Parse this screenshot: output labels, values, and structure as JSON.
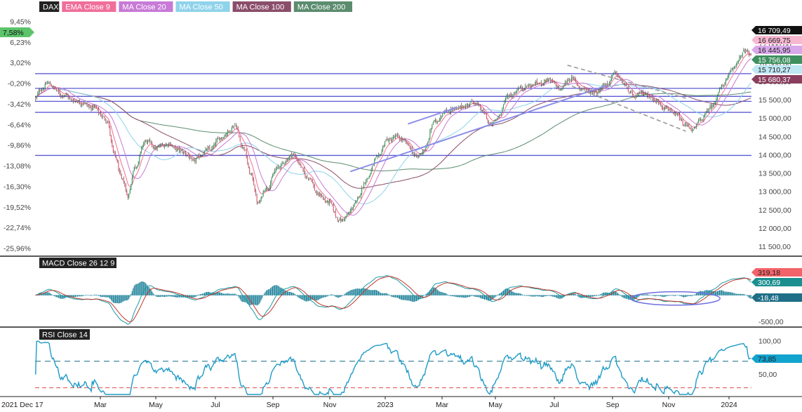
{
  "chart_data": [
    {
      "type": "candlestick",
      "title": "DAX",
      "legend": [
        {
          "label": "EMA Close 9",
          "color": "#f06e9a"
        },
        {
          "label": "MA Close 20",
          "color": "#c77ad6"
        },
        {
          "label": "MA Close 50",
          "color": "#8fd3ea"
        },
        {
          "label": "MA Close 100",
          "color": "#8a4e6a"
        },
        {
          "label": "MA Close 200",
          "color": "#5b8c6e"
        }
      ],
      "x_ticks": [
        "2021 Dec 17",
        "Mar",
        "May",
        "Jul",
        "Sep",
        "Nov",
        "2023",
        "Mar",
        "May",
        "Jul",
        "Sep",
        "Nov",
        "2024"
      ],
      "ylim": [
        11300,
        17750
      ],
      "y_ticks_right": [
        11500,
        12000,
        12500,
        13000,
        13500,
        14000,
        14500,
        15000,
        15500,
        16000,
        16500,
        17000
      ],
      "y_tick_labels_right": [
        "11 500,00",
        "12 000,00",
        "12 500,00",
        "13 000,00",
        "13 500,00",
        "14 000,00",
        "14 500,00",
        "15 000,00",
        "15 500,00",
        "16 000,00",
        "16 500,00",
        "17 000,00"
      ],
      "y_ticks_left": [
        "9,45%",
        "6,23%",
        "3,02%",
        "-0,20%",
        "-3,42%",
        "-6,64%",
        "-9,86%",
        "-13,08%",
        "-16,30%",
        "-19,52%",
        "-22,74%",
        "-25,96%"
      ],
      "left_badge": {
        "label": "7,58%",
        "color": "#5cc46a"
      },
      "horizontal_levels": [
        16220,
        15820,
        15600,
        15465,
        15165,
        13990
      ],
      "price_tags": [
        {
          "value": 16709.49,
          "label": "16 709,49",
          "color": "#111111",
          "text_color": "#ffffff"
        },
        {
          "value": 16669.75,
          "label": "16 669,75",
          "color": "#f7b8d2",
          "text_color": "#222222"
        },
        {
          "value": 16445.95,
          "label": "16 445,95",
          "color": "#d9a8ea",
          "text_color": "#222222"
        },
        {
          "value": 15756.08,
          "label": "15 756,08",
          "color": "#3f8f5f",
          "text_color": "#ffffff"
        },
        {
          "value": 15710.27,
          "label": "15 710,27",
          "color": "#bfe7f4",
          "text_color": "#222222"
        },
        {
          "value": 15680.37,
          "label": "15 680,37",
          "color": "#8a3f5e",
          "text_color": "#ffffff"
        }
      ],
      "anchors_close": [
        {
          "i": 0,
          "v": 15550
        },
        {
          "i": 5,
          "v": 15800
        },
        {
          "i": 12,
          "v": 15950
        },
        {
          "i": 25,
          "v": 15650
        },
        {
          "i": 40,
          "v": 15450
        },
        {
          "i": 55,
          "v": 15300
        },
        {
          "i": 68,
          "v": 14950
        },
        {
          "i": 75,
          "v": 14000
        },
        {
          "i": 83,
          "v": 13300
        },
        {
          "i": 88,
          "v": 12900
        },
        {
          "i": 95,
          "v": 13700
        },
        {
          "i": 105,
          "v": 14400
        },
        {
          "i": 115,
          "v": 14200
        },
        {
          "i": 125,
          "v": 14300
        },
        {
          "i": 140,
          "v": 14100
        },
        {
          "i": 150,
          "v": 13850
        },
        {
          "i": 165,
          "v": 14150
        },
        {
          "i": 178,
          "v": 14500
        },
        {
          "i": 190,
          "v": 14800
        },
        {
          "i": 198,
          "v": 14200
        },
        {
          "i": 205,
          "v": 13500
        },
        {
          "i": 212,
          "v": 12700
        },
        {
          "i": 220,
          "v": 13100
        },
        {
          "i": 232,
          "v": 13700
        },
        {
          "i": 245,
          "v": 14000
        },
        {
          "i": 260,
          "v": 13400
        },
        {
          "i": 270,
          "v": 12900
        },
        {
          "i": 280,
          "v": 12700
        },
        {
          "i": 290,
          "v": 12200
        },
        {
          "i": 297,
          "v": 12350
        },
        {
          "i": 305,
          "v": 12700
        },
        {
          "i": 315,
          "v": 13300
        },
        {
          "i": 325,
          "v": 13900
        },
        {
          "i": 335,
          "v": 14400
        },
        {
          "i": 345,
          "v": 14500
        },
        {
          "i": 355,
          "v": 14300
        },
        {
          "i": 362,
          "v": 13950
        },
        {
          "i": 370,
          "v": 14100
        },
        {
          "i": 380,
          "v": 14900
        },
        {
          "i": 392,
          "v": 15200
        },
        {
          "i": 405,
          "v": 15300
        },
        {
          "i": 418,
          "v": 15450
        },
        {
          "i": 428,
          "v": 15150
        },
        {
          "i": 433,
          "v": 14800
        },
        {
          "i": 440,
          "v": 15000
        },
        {
          "i": 450,
          "v": 15600
        },
        {
          "i": 465,
          "v": 15850
        },
        {
          "i": 478,
          "v": 15950
        },
        {
          "i": 490,
          "v": 16050
        },
        {
          "i": 500,
          "v": 15800
        },
        {
          "i": 510,
          "v": 16100
        },
        {
          "i": 522,
          "v": 15800
        },
        {
          "i": 533,
          "v": 15700
        },
        {
          "i": 545,
          "v": 15950
        },
        {
          "i": 553,
          "v": 16250
        },
        {
          "i": 560,
          "v": 15950
        },
        {
          "i": 570,
          "v": 15600
        },
        {
          "i": 580,
          "v": 15700
        },
        {
          "i": 590,
          "v": 15500
        },
        {
          "i": 600,
          "v": 15300
        },
        {
          "i": 610,
          "v": 15100
        },
        {
          "i": 620,
          "v": 14800
        },
        {
          "i": 627,
          "v": 14700
        },
        {
          "i": 635,
          "v": 15000
        },
        {
          "i": 645,
          "v": 15350
        },
        {
          "i": 655,
          "v": 15900
        },
        {
          "i": 665,
          "v": 16350
        },
        {
          "i": 672,
          "v": 16700
        },
        {
          "i": 677,
          "v": 16850
        },
        {
          "i": 682,
          "v": 16709
        }
      ],
      "num_bars": 683,
      "trendlines": [
        {
          "kind": "solid",
          "color": "#8c8ee8",
          "points": [
            [
              300,
              13550
            ],
            [
              545,
              15900
            ]
          ]
        },
        {
          "kind": "solid",
          "color": "#8c8ee8",
          "points": [
            [
              355,
              14850
            ],
            [
              402,
              15300
            ]
          ]
        },
        {
          "kind": "dashed",
          "color": "#999999",
          "points": [
            [
              507,
              16450
            ],
            [
              620,
              15550
            ]
          ]
        },
        {
          "kind": "dashed",
          "color": "#999999",
          "points": [
            [
              505,
              15950
            ],
            [
              620,
              14650
            ]
          ]
        }
      ]
    },
    {
      "type": "macd",
      "title": "MACD Close 26 12 9",
      "ylim": [
        -520,
        480
      ],
      "y_tick_labels": [
        "-500,00"
      ],
      "tags": [
        {
          "value": 319.18,
          "label": "319,18",
          "color": "#f2646a",
          "text_color": "#222222"
        },
        {
          "value": 300.69,
          "label": "300,69",
          "color": "#1b8f8f",
          "text_color": "#ffffff"
        },
        {
          "value": -18.48,
          "label": "-18,48",
          "color": "#1f6f87",
          "text_color": "#ffffff"
        }
      ],
      "ellipse": {
        "color": "#7070e0",
        "center_bar": 610,
        "center_value": -60,
        "rx_bars": 25,
        "ry_value": 120
      }
    },
    {
      "type": "rsi",
      "title": "RSI Close 14",
      "ylim": [
        20,
        115
      ],
      "y_ticks": [
        100,
        50
      ],
      "y_tick_labels": [
        "100,00",
        "50,00"
      ],
      "overbought": 70,
      "oversold": 30,
      "tag": {
        "value": 73.85,
        "label": "73,85",
        "color": "#12a3cf",
        "text_color": "#222222"
      }
    }
  ]
}
